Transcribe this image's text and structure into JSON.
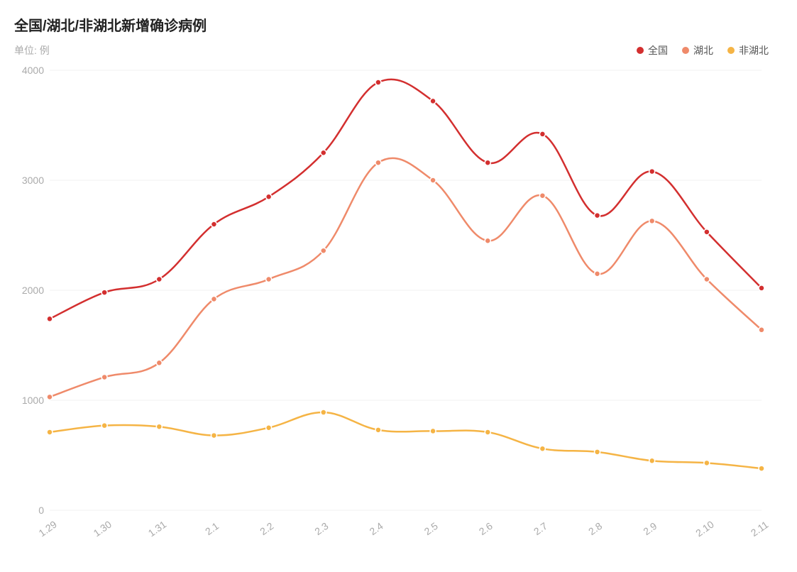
{
  "title": "全国/湖北/非湖北新增确诊病例",
  "unit": "单位: 例",
  "chart": {
    "type": "line",
    "background_color": "#ffffff",
    "grid_color": "#f0f0f0",
    "tick_color": "#aaaaaa",
    "title_fontsize": 20,
    "tick_fontsize": 14,
    "line_width": 2.5,
    "marker_radius": 4,
    "marker_style": "circle",
    "smooth": true,
    "x_label_rotation": -35,
    "ylim": [
      0,
      4000
    ],
    "ytick_step": 1000,
    "yticks": [
      0,
      1000,
      2000,
      3000,
      4000
    ],
    "categories": [
      "1.29",
      "1.30",
      "1.31",
      "2.1",
      "2.2",
      "2.3",
      "2.4",
      "2.5",
      "2.6",
      "2.7",
      "2.8",
      "2.9",
      "2.10",
      "2.11"
    ],
    "series": [
      {
        "key": "national",
        "label": "全国",
        "color": "#d32f2f",
        "values": [
          1740,
          1980,
          2100,
          2600,
          2850,
          3250,
          3890,
          3720,
          3160,
          3420,
          2680,
          3080,
          2530,
          2020
        ]
      },
      {
        "key": "hubei",
        "label": "湖北",
        "color": "#ef8a6a",
        "values": [
          1030,
          1210,
          1340,
          1920,
          2100,
          2360,
          3160,
          3000,
          2450,
          2860,
          2150,
          2630,
          2100,
          1640
        ]
      },
      {
        "key": "non_hubei",
        "label": "非湖北",
        "color": "#f5b445",
        "values": [
          710,
          770,
          760,
          680,
          750,
          890,
          730,
          720,
          710,
          560,
          530,
          450,
          430,
          380
        ]
      }
    ]
  }
}
